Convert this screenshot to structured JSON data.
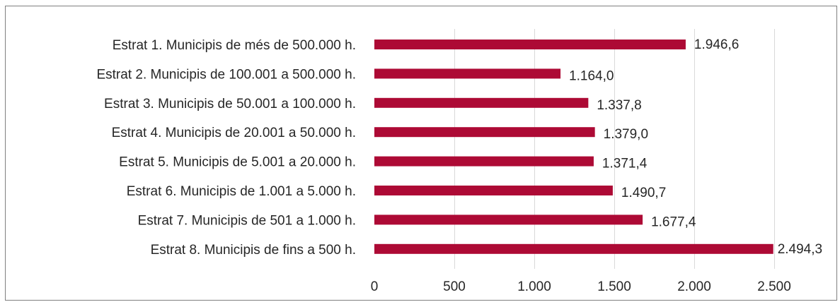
{
  "chart_data": {
    "type": "bar",
    "orientation": "horizontal",
    "title": "",
    "xlabel": "",
    "ylabel": "",
    "categories": [
      "Estrat 1. Municipis de més de 500.000 h.",
      "Estrat 2. Municipis de 100.001 a 500.000 h.",
      "Estrat 3. Municipis de 50.001 a 100.000 h.",
      "Estrat 4. Municipis de 20.001 a 50.000 h.",
      "Estrat 5. Municipis de 5.001 a 20.000 h.",
      "Estrat 6. Municipis de 1.001 a 5.000 h.",
      "Estrat 7. Municipis de 501 a 1.000 h.",
      "Estrat 8. Municipis de fins a 500 h."
    ],
    "values": [
      1946.6,
      1164.0,
      1337.8,
      1379.0,
      1371.4,
      1490.7,
      1677.4,
      2494.3
    ],
    "value_labels": [
      "1.946,6",
      "1.164,0",
      "1.337,8",
      "1.379,0",
      "1.371,4",
      "1.490,7",
      "1.677,4",
      "2.494,3"
    ],
    "xlim": [
      0,
      2500
    ],
    "x_ticks": [
      0,
      500,
      1000,
      1500,
      2000,
      2500
    ],
    "x_tick_labels": [
      "0",
      "500",
      "1.000",
      "1.500",
      "2.000",
      "2.500"
    ],
    "grid": true,
    "legend": "none",
    "bar_color": "#ad0a35"
  }
}
